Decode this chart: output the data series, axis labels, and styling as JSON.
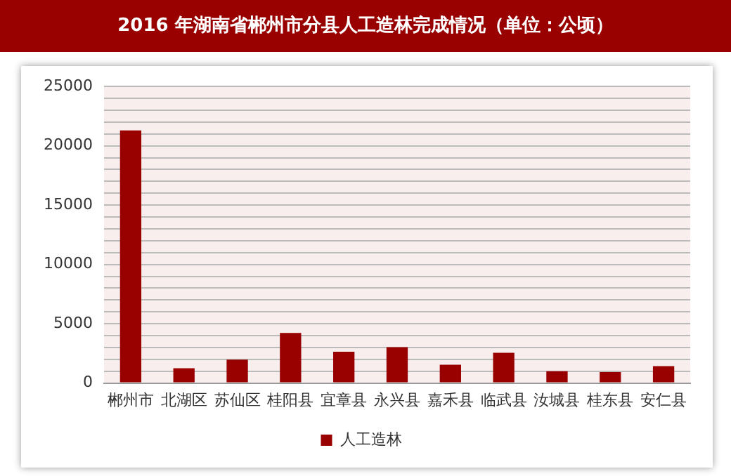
{
  "chart_data": {
    "type": "bar",
    "title": "2016 年湖南省郴州市分县人工造林完成情况（单位：公顷）",
    "categories": [
      "郴州市",
      "北湖区",
      "苏仙区",
      "桂阳县",
      "宜章县",
      "永兴县",
      "嘉禾县",
      "临武县",
      "汝城县",
      "桂东县",
      "安仁县"
    ],
    "series": [
      {
        "name": "人工造林",
        "color": "#990000",
        "values": [
          21300,
          1250,
          1970,
          4230,
          2640,
          3020,
          1550,
          2550,
          1000,
          920,
          1420
        ]
      }
    ],
    "ylim": [
      0,
      25000
    ],
    "yticks": [
      0,
      {
        "value": 1000,
        "label": null
      },
      {
        "value": 2000,
        "label": null
      },
      {
        "value": 3000,
        "label": null
      },
      {
        "value": 4000,
        "label": null
      },
      5000,
      {
        "value": 6000,
        "label": null
      },
      {
        "value": 7000,
        "label": null
      },
      {
        "value": 8000,
        "label": null
      },
      {
        "value": 9000,
        "label": null
      },
      10000,
      {
        "value": 11000,
        "label": null
      },
      {
        "value": 12000,
        "label": null
      },
      {
        "value": 13000,
        "label": null
      },
      {
        "value": 14000,
        "label": null
      },
      15000,
      {
        "value": 16000,
        "label": null
      },
      {
        "value": 17000,
        "label": null
      },
      {
        "value": 18000,
        "label": null
      },
      {
        "value": 19000,
        "label": null
      },
      20000,
      {
        "value": 21000,
        "label": null
      },
      {
        "value": 22000,
        "label": null
      },
      {
        "value": 23000,
        "label": null
      },
      {
        "value": 24000,
        "label": null
      },
      25000
    ],
    "grid": "y",
    "legend": "bottom"
  }
}
